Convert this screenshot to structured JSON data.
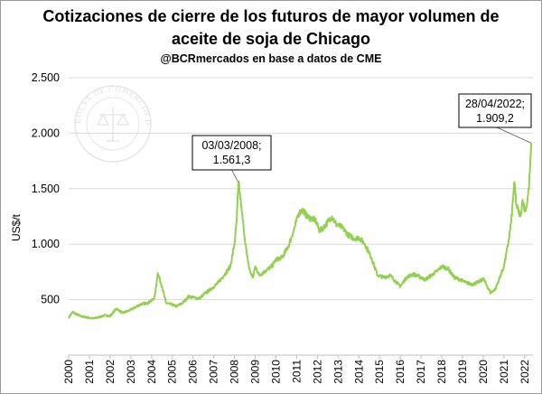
{
  "chart_data": {
    "type": "line",
    "title_line1": "Cotizaciones de cierre de los futuros de mayor volumen de",
    "title_line2": "aceite de soja de Chicago",
    "subtitle": "@BCRmercados en base a datos de CME",
    "xlabel": "",
    "ylabel": "US$/t",
    "ylim": [
      0,
      2500
    ],
    "xlim": [
      2000.0,
      2022.4
    ],
    "y_ticks": [
      0,
      500,
      1000,
      1500,
      2000,
      2500
    ],
    "y_tick_labels": [
      "",
      "500",
      "1.000",
      "1.500",
      "2.000",
      "2.500"
    ],
    "x_ticks": [
      "2000",
      "2001",
      "2002",
      "2003",
      "2004",
      "2005",
      "2006",
      "2007",
      "2008",
      "2009",
      "2010",
      "2011",
      "2012",
      "2013",
      "2014",
      "2015",
      "2016",
      "2017",
      "2018",
      "2019",
      "2020",
      "2021",
      "2022"
    ],
    "grid": "horizontal",
    "legend": "none",
    "color": "#92d050",
    "series": [
      {
        "x": [
          2000.0,
          2000.2,
          2000.35,
          2000.6,
          2000.9,
          2001.2,
          2001.5,
          2001.8,
          2002.0,
          2002.3,
          2002.6,
          2002.9,
          2003.2,
          2003.5,
          2003.8,
          2004.0,
          2004.15,
          2004.3,
          2004.5,
          2004.7,
          2004.9,
          2005.2,
          2005.5,
          2005.8,
          2006.0,
          2006.3,
          2006.6,
          2006.9,
          2007.2,
          2007.5,
          2007.8,
          2008.0,
          2008.1,
          2008.2,
          2008.35,
          2008.5,
          2008.6,
          2008.75,
          2008.9,
          2009.0,
          2009.2,
          2009.5,
          2009.8,
          2010.0,
          2010.3,
          2010.6,
          2010.9,
          2011.1,
          2011.3,
          2011.5,
          2011.7,
          2011.9,
          2012.1,
          2012.3,
          2012.5,
          2012.7,
          2012.9,
          2013.2,
          2013.5,
          2013.8,
          2014.0,
          2014.3,
          2014.6,
          2014.9,
          2015.2,
          2015.5,
          2015.8,
          2016.0,
          2016.3,
          2016.6,
          2016.9,
          2017.2,
          2017.5,
          2017.8,
          2018.0,
          2018.3,
          2018.6,
          2018.9,
          2019.2,
          2019.5,
          2019.8,
          2020.0,
          2020.2,
          2020.35,
          2020.6,
          2020.8,
          2021.0,
          2021.2,
          2021.35,
          2021.5,
          2021.6,
          2021.8,
          2021.9,
          2022.0,
          2022.1,
          2022.2,
          2022.33
        ],
        "y": [
          340,
          390,
          370,
          350,
          340,
          330,
          345,
          360,
          350,
          420,
          380,
          400,
          430,
          460,
          470,
          490,
          520,
          740,
          620,
          470,
          460,
          440,
          470,
          530,
          520,
          510,
          560,
          600,
          650,
          720,
          800,
          1000,
          1200,
          1561,
          1300,
          1050,
          900,
          750,
          700,
          800,
          720,
          760,
          800,
          860,
          880,
          980,
          1150,
          1280,
          1310,
          1250,
          1230,
          1220,
          1120,
          1150,
          1200,
          1250,
          1180,
          1150,
          1080,
          1050,
          1060,
          1000,
          880,
          720,
          700,
          720,
          660,
          620,
          700,
          730,
          710,
          680,
          720,
          760,
          800,
          780,
          700,
          680,
          650,
          640,
          660,
          690,
          620,
          560,
          600,
          700,
          800,
          1000,
          1200,
          1560,
          1350,
          1250,
          1400,
          1300,
          1350,
          1500,
          1909
        ]
      }
    ],
    "annotations": [
      {
        "line1": "03/03/2008;",
        "line2": "1.561,3",
        "x": 2008.17,
        "y": 1561.3
      },
      {
        "line1": "28/04/2022;",
        "line2": "1.909,2",
        "x": 2022.33,
        "y": 1909.2
      }
    ],
    "watermark_text": "BOLSA DE COMERCIO DE ROSARIO"
  }
}
